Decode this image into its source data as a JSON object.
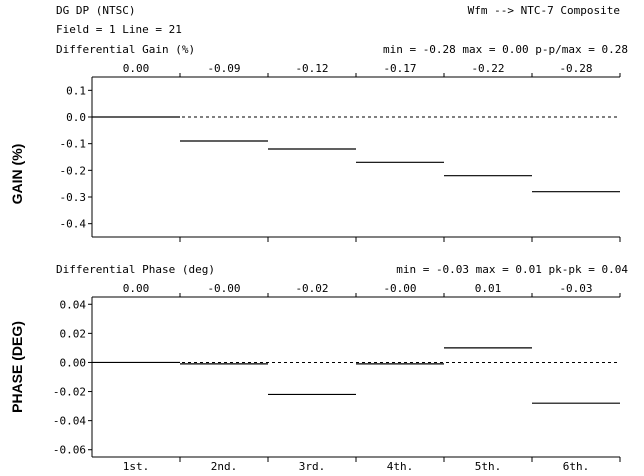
{
  "header": {
    "title": "DG DP (NTSC)",
    "source": "Wfm --> NTC-7 Composite",
    "field_line": "Field = 1 Line =  21"
  },
  "chart_data": [
    {
      "type": "step",
      "title": "Differential Gain (%)",
      "stats": "min = -0.28  max =  0.00  p-p/max =  0.28",
      "ylabel": "GAIN (%)",
      "ylim": [
        -0.45,
        0.15
      ],
      "yticks": [
        0.1,
        0.0,
        -0.1,
        -0.2,
        -0.3,
        -0.4
      ],
      "ytick_labels": [
        "0.1",
        "0.0",
        "-0.1",
        "-0.2",
        "-0.3",
        "-0.4"
      ],
      "categories": [
        "1st.",
        "2nd.",
        "3rd.",
        "4th.",
        "5th.",
        "6th."
      ],
      "values": [
        0.0,
        -0.09,
        -0.12,
        -0.17,
        -0.22,
        -0.28
      ],
      "value_labels": [
        "0.00",
        "-0.09",
        "-0.12",
        "-0.17",
        "-0.22",
        "-0.28"
      ],
      "reference": 0.0
    },
    {
      "type": "step",
      "title": "Differential Phase (deg)",
      "stats": "min = -0.03   max =  0.01    pk-pk =  0.04",
      "ylabel": "PHASE (DEG)",
      "ylim": [
        -0.065,
        0.045
      ],
      "yticks": [
        0.04,
        0.02,
        0.0,
        -0.02,
        -0.04,
        -0.06
      ],
      "ytick_labels": [
        "0.04",
        "0.02",
        "0.00",
        "-0.02",
        "-0.04",
        "-0.06"
      ],
      "categories": [
        "1st.",
        "2nd.",
        "3rd.",
        "4th.",
        "5th.",
        "6th."
      ],
      "values": [
        0.0,
        -0.001,
        -0.022,
        -0.001,
        0.01,
        -0.028
      ],
      "value_labels": [
        "0.00",
        "-0.00",
        "-0.02",
        "-0.00",
        "0.01",
        "-0.03"
      ],
      "reference": 0.0
    }
  ]
}
